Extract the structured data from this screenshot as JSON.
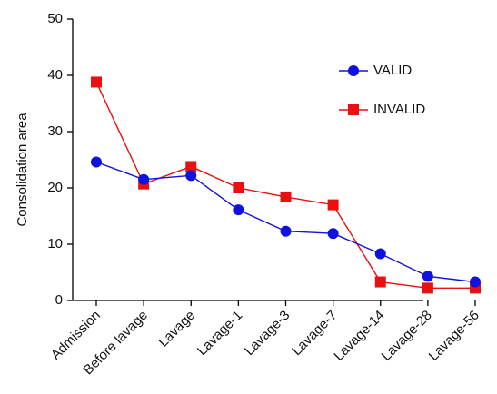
{
  "chart_data": {
    "type": "line",
    "title": "",
    "xlabel": "",
    "ylabel": "Consolidation area",
    "ylim": [
      0,
      50
    ],
    "yticks": [
      0,
      10,
      20,
      30,
      40,
      50
    ],
    "grid": false,
    "legend_position": "top-right",
    "categories": [
      "Admission",
      "Before lavage",
      "Lavage",
      "Lavage-1",
      "Lavage-3",
      "Lavage-7",
      "Lavage-14",
      "Lavage-28",
      "Lavage-56"
    ],
    "series": [
      {
        "name": "VALID",
        "color": "#1010e0",
        "marker": "circle",
        "values": [
          24.6,
          21.5,
          22.2,
          16.1,
          12.3,
          11.9,
          8.3,
          4.3,
          3.3
        ]
      },
      {
        "name": "INVALID",
        "color": "#e81010",
        "marker": "square",
        "values": [
          38.8,
          20.7,
          23.8,
          20.0,
          18.4,
          17.0,
          3.3,
          2.2,
          2.2
        ]
      }
    ]
  }
}
